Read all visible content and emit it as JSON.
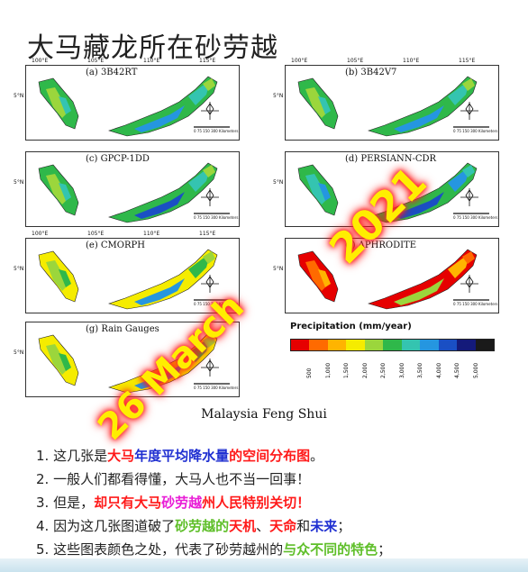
{
  "title": "大马藏龙所在砂劳越",
  "panels": [
    {
      "label": "(a) 3B42RT"
    },
    {
      "label": "(b) 3B42V7"
    },
    {
      "label": "(c) GPCP-1DD"
    },
    {
      "label": "(d) PERSIANN-CDR"
    },
    {
      "label": "(e) CMORPH"
    },
    {
      "label": "(f) APHRODITE"
    },
    {
      "label": "(g) Rain Gauges"
    }
  ],
  "axis_ticks": {
    "lon": [
      "100°E",
      "105°E",
      "110°E",
      "115°E"
    ],
    "lat": "5°N"
  },
  "scale_text": "0  75 150    300 Kilometers",
  "legend": {
    "title": "Precipitation (mm/year)",
    "colors": [
      "#e60000",
      "#ff6a00",
      "#ffb400",
      "#f5ec00",
      "#9bd63c",
      "#2fb84a",
      "#34c4b0",
      "#2596e0",
      "#1a4fc4",
      "#141a7a",
      "#1a1a1a"
    ],
    "ticks": [
      "500",
      "1,000",
      "1,500",
      "2,000",
      "2,500",
      "3,000",
      "3,500",
      "4,000",
      "4,500",
      "5,000"
    ]
  },
  "caption": "Malaysia Feng Shui",
  "watermark": {
    "date": "26  March",
    "year": "2021"
  },
  "list": [
    {
      "num": "1.",
      "parts": [
        {
          "t": "这几张是",
          "c": ""
        },
        {
          "t": "大马",
          "c": "red"
        },
        {
          "t": "年度平均降水量",
          "c": "blue"
        },
        {
          "t": "的空间分布图",
          "c": "red"
        },
        {
          "t": "。",
          "c": ""
        }
      ]
    },
    {
      "num": "2.",
      "parts": [
        {
          "t": "一般人们都看得懂，大马人也不当一回事！",
          "c": ""
        }
      ]
    },
    {
      "num": "3.",
      "parts": [
        {
          "t": "但是，",
          "c": ""
        },
        {
          "t": "却只有大马",
          "c": "red"
        },
        {
          "t": "砂劳越",
          "c": "mag"
        },
        {
          "t": "州人民",
          "c": "red"
        },
        {
          "t": "特别关切！",
          "c": "red"
        }
      ]
    },
    {
      "num": "4.",
      "parts": [
        {
          "t": "因为这几张图道破了",
          "c": ""
        },
        {
          "t": "砂劳越的",
          "c": "green"
        },
        {
          "t": "天机",
          "c": "red"
        },
        {
          "t": "、",
          "c": ""
        },
        {
          "t": "天命",
          "c": "red"
        },
        {
          "t": "和",
          "c": ""
        },
        {
          "t": "未来",
          "c": "blue"
        },
        {
          "t": "；",
          "c": ""
        }
      ]
    },
    {
      "num": "5.",
      "parts": [
        {
          "t": "这些图表颜色之处，代表了砂劳越州的",
          "c": ""
        },
        {
          "t": "与众不同的特色",
          "c": "green"
        },
        {
          "t": "；",
          "c": ""
        }
      ]
    }
  ]
}
